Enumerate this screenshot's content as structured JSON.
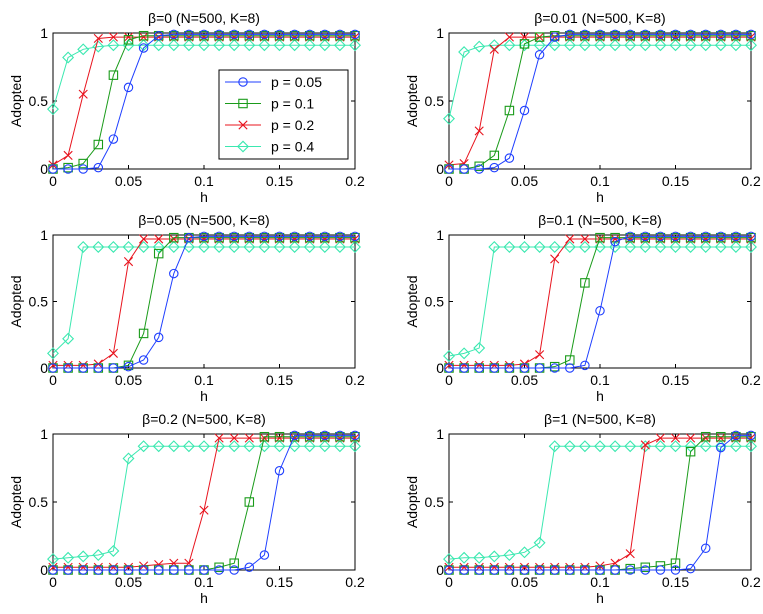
{
  "figure": {
    "ylabel": "Adopted",
    "xlabel": "h",
    "legend": {
      "placement": "inside-right of first panel",
      "entries": [
        "p = 0.05",
        "p = 0.1",
        "p = 0.2",
        "p = 0.4"
      ]
    }
  },
  "chart_data": [
    {
      "type": "line",
      "title": "β=0 (N=500, K=8)",
      "xlabel": "h",
      "ylabel": "Adopted",
      "xlim": [
        0,
        0.2
      ],
      "ylim": [
        0,
        1
      ],
      "xticks": [
        0,
        0.05,
        0.1,
        0.15,
        0.2
      ],
      "xticklabels": [
        "0",
        "0.05",
        "0.1",
        "0.15",
        "0.2"
      ],
      "yticks": [
        0,
        0.5,
        1
      ],
      "yticklabels": [
        "0",
        "0.5",
        "1"
      ],
      "x": [
        0,
        0.01,
        0.02,
        0.03,
        0.04,
        0.05,
        0.06,
        0.07,
        0.08,
        0.09,
        0.1,
        0.11,
        0.12,
        0.13,
        0.14,
        0.15,
        0.16,
        0.17,
        0.18,
        0.19,
        0.2
      ],
      "series": [
        {
          "name": "p = 0.05",
          "color": "#1f3fff",
          "marker": "circle",
          "values": [
            0,
            0,
            0,
            0.01,
            0.22,
            0.6,
            0.89,
            0.98,
            0.99,
            0.99,
            0.99,
            0.99,
            0.99,
            0.99,
            0.99,
            0.99,
            0.99,
            0.99,
            0.99,
            0.99,
            0.99
          ]
        },
        {
          "name": "p = 0.1",
          "color": "#1a9b1a",
          "marker": "square",
          "values": [
            0,
            0.01,
            0.04,
            0.18,
            0.69,
            0.95,
            0.98,
            0.98,
            0.98,
            0.98,
            0.98,
            0.98,
            0.98,
            0.98,
            0.98,
            0.98,
            0.98,
            0.98,
            0.98,
            0.98,
            0.98
          ]
        },
        {
          "name": "p = 0.2",
          "color": "#e8141e",
          "marker": "x",
          "values": [
            0.03,
            0.1,
            0.55,
            0.96,
            0.97,
            0.97,
            0.97,
            0.97,
            0.97,
            0.97,
            0.97,
            0.97,
            0.97,
            0.97,
            0.97,
            0.97,
            0.97,
            0.97,
            0.97,
            0.97,
            0.97
          ]
        },
        {
          "name": "p = 0.4",
          "color": "#3be8b0",
          "marker": "diamond",
          "values": [
            0.44,
            0.82,
            0.88,
            0.9,
            0.91,
            0.91,
            0.91,
            0.91,
            0.91,
            0.91,
            0.91,
            0.91,
            0.91,
            0.91,
            0.91,
            0.91,
            0.91,
            0.91,
            0.91,
            0.91,
            0.91
          ]
        }
      ]
    },
    {
      "type": "line",
      "title": "β=0.01 (N=500, K=8)",
      "xlabel": "h",
      "ylabel": "Adopted",
      "xlim": [
        0,
        0.2
      ],
      "ylim": [
        0,
        1
      ],
      "xticks": [
        0,
        0.05,
        0.1,
        0.15,
        0.2
      ],
      "xticklabels": [
        "0",
        "0.05",
        "0.1",
        "0.15",
        "0.2"
      ],
      "yticks": [
        0,
        0.5,
        1
      ],
      "yticklabels": [
        "0",
        "0.5",
        "1"
      ],
      "x": [
        0,
        0.01,
        0.02,
        0.03,
        0.04,
        0.05,
        0.06,
        0.07,
        0.08,
        0.09,
        0.1,
        0.11,
        0.12,
        0.13,
        0.14,
        0.15,
        0.16,
        0.17,
        0.18,
        0.19,
        0.2
      ],
      "series": [
        {
          "name": "p = 0.05",
          "color": "#1f3fff",
          "marker": "circle",
          "values": [
            0,
            0,
            0,
            0.01,
            0.08,
            0.43,
            0.84,
            0.97,
            0.99,
            0.99,
            0.99,
            0.99,
            0.99,
            0.99,
            0.99,
            0.99,
            0.99,
            0.99,
            0.99,
            0.99,
            0.99
          ]
        },
        {
          "name": "p = 0.1",
          "color": "#1a9b1a",
          "marker": "square",
          "values": [
            0,
            0,
            0.02,
            0.1,
            0.43,
            0.92,
            0.97,
            0.98,
            0.98,
            0.98,
            0.98,
            0.98,
            0.98,
            0.98,
            0.98,
            0.98,
            0.98,
            0.98,
            0.98,
            0.98,
            0.98
          ]
        },
        {
          "name": "p = 0.2",
          "color": "#e8141e",
          "marker": "x",
          "values": [
            0.03,
            0.04,
            0.28,
            0.88,
            0.97,
            0.97,
            0.97,
            0.97,
            0.97,
            0.97,
            0.97,
            0.97,
            0.97,
            0.97,
            0.97,
            0.97,
            0.97,
            0.97,
            0.97,
            0.97,
            0.97
          ]
        },
        {
          "name": "p = 0.4",
          "color": "#3be8b0",
          "marker": "diamond",
          "values": [
            0.37,
            0.86,
            0.9,
            0.91,
            0.91,
            0.91,
            0.91,
            0.91,
            0.91,
            0.91,
            0.91,
            0.91,
            0.91,
            0.91,
            0.91,
            0.91,
            0.91,
            0.91,
            0.91,
            0.91,
            0.91
          ]
        }
      ]
    },
    {
      "type": "line",
      "title": "β=0.05 (N=500, K=8)",
      "xlabel": "h",
      "ylabel": "Adopted",
      "xlim": [
        0,
        0.2
      ],
      "ylim": [
        0,
        1
      ],
      "xticks": [
        0,
        0.05,
        0.1,
        0.15,
        0.2
      ],
      "xticklabels": [
        "0",
        "0.05",
        "0.1",
        "0.15",
        "0.2"
      ],
      "yticks": [
        0,
        0.5,
        1
      ],
      "yticklabels": [
        "0",
        "0.5",
        "1"
      ],
      "x": [
        0,
        0.01,
        0.02,
        0.03,
        0.04,
        0.05,
        0.06,
        0.07,
        0.08,
        0.09,
        0.1,
        0.11,
        0.12,
        0.13,
        0.14,
        0.15,
        0.16,
        0.17,
        0.18,
        0.19,
        0.2
      ],
      "series": [
        {
          "name": "p = 0.05",
          "color": "#1f3fff",
          "marker": "circle",
          "values": [
            0,
            0,
            0,
            0,
            0,
            0.01,
            0.06,
            0.23,
            0.71,
            0.98,
            0.99,
            0.99,
            0.99,
            0.99,
            0.99,
            0.99,
            0.99,
            0.99,
            0.99,
            0.99,
            0.99
          ]
        },
        {
          "name": "p = 0.1",
          "color": "#1a9b1a",
          "marker": "square",
          "values": [
            0,
            0,
            0,
            0,
            0,
            0.02,
            0.26,
            0.86,
            0.98,
            0.98,
            0.98,
            0.98,
            0.98,
            0.98,
            0.98,
            0.98,
            0.98,
            0.98,
            0.98,
            0.98,
            0.98
          ]
        },
        {
          "name": "p = 0.2",
          "color": "#e8141e",
          "marker": "x",
          "values": [
            0.02,
            0.02,
            0.02,
            0.03,
            0.11,
            0.8,
            0.97,
            0.97,
            0.97,
            0.97,
            0.97,
            0.97,
            0.97,
            0.97,
            0.97,
            0.97,
            0.97,
            0.97,
            0.97,
            0.97,
            0.97
          ]
        },
        {
          "name": "p = 0.4",
          "color": "#3be8b0",
          "marker": "diamond",
          "values": [
            0.11,
            0.22,
            0.91,
            0.91,
            0.91,
            0.91,
            0.91,
            0.91,
            0.91,
            0.91,
            0.91,
            0.91,
            0.91,
            0.91,
            0.91,
            0.91,
            0.91,
            0.91,
            0.91,
            0.91,
            0.91
          ]
        }
      ]
    },
    {
      "type": "line",
      "title": "β=0.1 (N=500, K=8)",
      "xlabel": "h",
      "ylabel": "Adopted",
      "xlim": [
        0,
        0.2
      ],
      "ylim": [
        0,
        1
      ],
      "xticks": [
        0,
        0.05,
        0.1,
        0.15,
        0.2
      ],
      "xticklabels": [
        "0",
        "0.05",
        "0.1",
        "0.15",
        "0.2"
      ],
      "yticks": [
        0,
        0.5,
        1
      ],
      "yticklabels": [
        "0",
        "0.5",
        "1"
      ],
      "x": [
        0,
        0.01,
        0.02,
        0.03,
        0.04,
        0.05,
        0.06,
        0.07,
        0.08,
        0.09,
        0.1,
        0.11,
        0.12,
        0.13,
        0.14,
        0.15,
        0.16,
        0.17,
        0.18,
        0.19,
        0.2
      ],
      "series": [
        {
          "name": "p = 0.05",
          "color": "#1f3fff",
          "marker": "circle",
          "values": [
            0,
            0,
            0,
            0,
            0,
            0,
            0,
            0,
            0,
            0.02,
            0.43,
            0.95,
            0.99,
            0.99,
            0.99,
            0.99,
            0.99,
            0.99,
            0.99,
            0.99,
            0.99
          ]
        },
        {
          "name": "p = 0.1",
          "color": "#1a9b1a",
          "marker": "square",
          "values": [
            0,
            0,
            0,
            0,
            0,
            0,
            0,
            0.01,
            0.06,
            0.64,
            0.98,
            0.98,
            0.98,
            0.98,
            0.98,
            0.98,
            0.98,
            0.98,
            0.98,
            0.98,
            0.98
          ]
        },
        {
          "name": "p = 0.2",
          "color": "#e8141e",
          "marker": "x",
          "values": [
            0.02,
            0.02,
            0.02,
            0.02,
            0.02,
            0.03,
            0.1,
            0.82,
            0.97,
            0.97,
            0.97,
            0.97,
            0.97,
            0.97,
            0.97,
            0.97,
            0.97,
            0.97,
            0.97,
            0.97,
            0.97
          ]
        },
        {
          "name": "p = 0.4",
          "color": "#3be8b0",
          "marker": "diamond",
          "values": [
            0.09,
            0.11,
            0.15,
            0.91,
            0.91,
            0.91,
            0.91,
            0.91,
            0.91,
            0.91,
            0.91,
            0.91,
            0.91,
            0.91,
            0.91,
            0.91,
            0.91,
            0.91,
            0.91,
            0.91,
            0.91
          ]
        }
      ]
    },
    {
      "type": "line",
      "title": "β=0.2 (N=500, K=8)",
      "xlabel": "h",
      "ylabel": "Adopted",
      "xlim": [
        0,
        0.2
      ],
      "ylim": [
        0,
        1
      ],
      "xticks": [
        0,
        0.05,
        0.1,
        0.15,
        0.2
      ],
      "xticklabels": [
        "0",
        "0.05",
        "0.1",
        "0.15",
        "0.2"
      ],
      "yticks": [
        0,
        0.5,
        1
      ],
      "yticklabels": [
        "0",
        "0.5",
        "1"
      ],
      "x": [
        0,
        0.01,
        0.02,
        0.03,
        0.04,
        0.05,
        0.06,
        0.07,
        0.08,
        0.09,
        0.1,
        0.11,
        0.12,
        0.13,
        0.14,
        0.15,
        0.16,
        0.17,
        0.18,
        0.19,
        0.2
      ],
      "series": [
        {
          "name": "p = 0.05",
          "color": "#1f3fff",
          "marker": "circle",
          "values": [
            0,
            0,
            0,
            0,
            0,
            0,
            0,
            0,
            0,
            0,
            0,
            0,
            0,
            0.02,
            0.11,
            0.73,
            0.99,
            0.99,
            0.99,
            0.99,
            0.99
          ]
        },
        {
          "name": "p = 0.1",
          "color": "#1a9b1a",
          "marker": "square",
          "values": [
            0,
            0,
            0,
            0,
            0,
            0,
            0,
            0,
            0,
            0,
            0,
            0.02,
            0.05,
            0.5,
            0.98,
            0.98,
            0.98,
            0.98,
            0.98,
            0.98,
            0.98
          ]
        },
        {
          "name": "p = 0.2",
          "color": "#e8141e",
          "marker": "x",
          "values": [
            0.02,
            0.02,
            0.02,
            0.02,
            0.02,
            0.02,
            0.03,
            0.04,
            0.05,
            0.05,
            0.44,
            0.97,
            0.97,
            0.97,
            0.97,
            0.97,
            0.97,
            0.97,
            0.97,
            0.97,
            0.97
          ]
        },
        {
          "name": "p = 0.4",
          "color": "#3be8b0",
          "marker": "diamond",
          "values": [
            0.08,
            0.09,
            0.1,
            0.11,
            0.14,
            0.82,
            0.91,
            0.91,
            0.91,
            0.91,
            0.91,
            0.91,
            0.91,
            0.91,
            0.91,
            0.91,
            0.91,
            0.91,
            0.91,
            0.91,
            0.91
          ]
        }
      ]
    },
    {
      "type": "line",
      "title": "β=1 (N=500, K=8)",
      "xlabel": "h",
      "ylabel": "Adopted",
      "xlim": [
        0,
        0.2
      ],
      "ylim": [
        0,
        1
      ],
      "xticks": [
        0,
        0.05,
        0.1,
        0.15,
        0.2
      ],
      "xticklabels": [
        "0",
        "0.05",
        "0.1",
        "0.15",
        "0.2"
      ],
      "yticks": [
        0,
        0.5,
        1
      ],
      "yticklabels": [
        "0",
        "0.5",
        "1"
      ],
      "x": [
        0,
        0.01,
        0.02,
        0.03,
        0.04,
        0.05,
        0.06,
        0.07,
        0.08,
        0.09,
        0.1,
        0.11,
        0.12,
        0.13,
        0.14,
        0.15,
        0.16,
        0.17,
        0.18,
        0.19,
        0.2
      ],
      "series": [
        {
          "name": "p = 0.05",
          "color": "#1f3fff",
          "marker": "circle",
          "values": [
            0,
            0,
            0,
            0,
            0,
            0,
            0,
            0,
            0,
            0,
            0,
            0,
            0,
            0,
            0,
            0,
            0.01,
            0.16,
            0.9,
            0.99,
            0.99
          ]
        },
        {
          "name": "p = 0.1",
          "color": "#1a9b1a",
          "marker": "square",
          "values": [
            0,
            0,
            0,
            0,
            0,
            0,
            0,
            0,
            0,
            0,
            0,
            0,
            0.01,
            0.02,
            0.03,
            0.05,
            0.87,
            0.98,
            0.98,
            0.98,
            0.98
          ]
        },
        {
          "name": "p = 0.2",
          "color": "#e8141e",
          "marker": "x",
          "values": [
            0.02,
            0.02,
            0.02,
            0.02,
            0.02,
            0.02,
            0.02,
            0.02,
            0.02,
            0.02,
            0.03,
            0.05,
            0.12,
            0.92,
            0.97,
            0.97,
            0.97,
            0.97,
            0.97,
            0.97,
            0.97
          ]
        },
        {
          "name": "p = 0.4",
          "color": "#3be8b0",
          "marker": "diamond",
          "values": [
            0.08,
            0.09,
            0.09,
            0.1,
            0.11,
            0.13,
            0.2,
            0.91,
            0.91,
            0.91,
            0.91,
            0.91,
            0.91,
            0.91,
            0.91,
            0.91,
            0.91,
            0.91,
            0.91,
            0.91,
            0.91
          ]
        }
      ]
    }
  ]
}
